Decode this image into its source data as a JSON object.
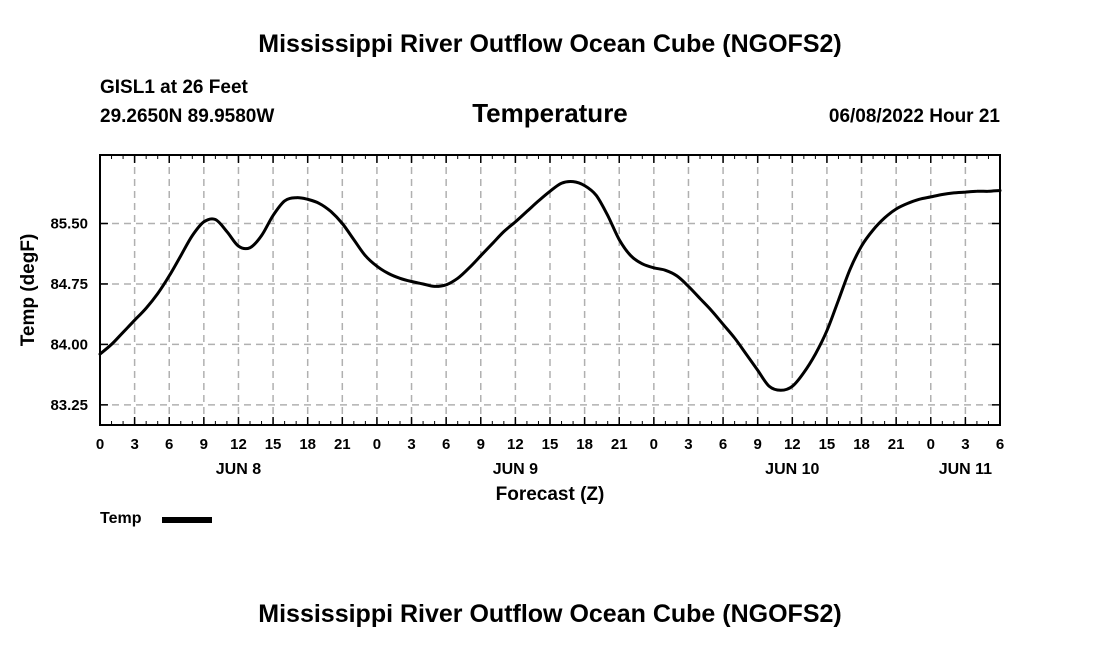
{
  "header": {
    "title": "Mississippi River Outflow Ocean Cube (NGOFS2)",
    "station": "GISL1 at 26 Feet",
    "coords": "29.2650N  89.9580W",
    "date": "06/08/2022 Hour 21"
  },
  "footer": {
    "title": "Mississippi River Outflow Ocean Cube (NGOFS2)"
  },
  "legend": {
    "label": "Temp"
  },
  "chart_data": {
    "type": "line",
    "title": "Temperature",
    "xlabel": "Forecast (Z)",
    "ylabel": "Temp (degF)",
    "xlim": [
      0,
      78
    ],
    "ylim": [
      83.0,
      86.35
    ],
    "y_ticks": [
      "83.25",
      "84.00",
      "84.75",
      "85.50"
    ],
    "y_tick_values": [
      83.25,
      84.0,
      84.75,
      85.5
    ],
    "x_tick_labels": [
      "0",
      "3",
      "6",
      "9",
      "12",
      "15",
      "18",
      "21",
      "0",
      "3",
      "6",
      "9",
      "12",
      "15",
      "18",
      "21",
      "0",
      "3",
      "6",
      "9",
      "12",
      "15",
      "18",
      "21",
      "0",
      "3",
      "6"
    ],
    "day_labels": [
      {
        "label": "JUN 8",
        "hour": 12
      },
      {
        "label": "JUN 9",
        "hour": 36
      },
      {
        "label": "JUN 10",
        "hour": 60
      },
      {
        "label": "JUN 11",
        "hour": 75
      }
    ],
    "series": [
      {
        "name": "Temp",
        "x": [
          0,
          1,
          2,
          3,
          4,
          5,
          6,
          7,
          8,
          9,
          10,
          11,
          12,
          13,
          14,
          15,
          16,
          17,
          18,
          19,
          20,
          21,
          22,
          23,
          24,
          25,
          26,
          27,
          28,
          29,
          30,
          31,
          32,
          33,
          34,
          35,
          36,
          37,
          38,
          39,
          40,
          41,
          42,
          43,
          44,
          45,
          46,
          47,
          48,
          49,
          50,
          51,
          52,
          53,
          54,
          55,
          56,
          57,
          58,
          59,
          60,
          61,
          62,
          63,
          64,
          65,
          66,
          67,
          68,
          69,
          70,
          71,
          72,
          73,
          74,
          75,
          76,
          77,
          78
        ],
        "values": [
          83.88,
          84.0,
          84.15,
          84.3,
          84.45,
          84.63,
          84.85,
          85.1,
          85.35,
          85.52,
          85.55,
          85.4,
          85.22,
          85.2,
          85.35,
          85.6,
          85.78,
          85.82,
          85.8,
          85.75,
          85.65,
          85.5,
          85.3,
          85.1,
          84.97,
          84.88,
          84.82,
          84.78,
          84.75,
          84.72,
          84.74,
          84.82,
          84.95,
          85.1,
          85.25,
          85.4,
          85.52,
          85.65,
          85.78,
          85.9,
          86.0,
          86.02,
          85.97,
          85.85,
          85.6,
          85.3,
          85.1,
          85.0,
          84.95,
          84.92,
          84.85,
          84.72,
          84.57,
          84.42,
          84.25,
          84.08,
          83.88,
          83.68,
          83.48,
          83.43,
          83.48,
          83.65,
          83.88,
          84.17,
          84.55,
          84.93,
          85.22,
          85.42,
          85.57,
          85.68,
          85.75,
          85.8,
          85.83,
          85.86,
          85.88,
          85.89,
          85.9,
          85.9,
          85.91
        ]
      }
    ]
  }
}
